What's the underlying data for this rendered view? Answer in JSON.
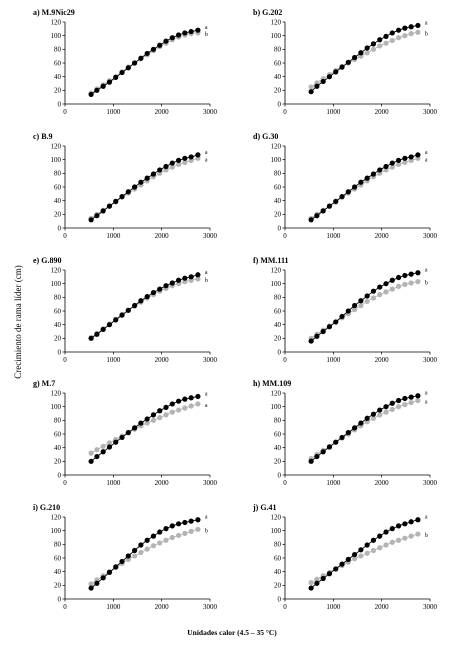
{
  "figure": {
    "ylabel": "Crecimiento de rama líder (cm)",
    "xlabel": "Unidades calor (4.5 – 35 °C)",
    "colors": {
      "series1": "#000000",
      "series2": "#b4b4b4",
      "axis": "#000000"
    }
  },
  "chart_data": [
    {
      "type": "line",
      "title": "a) M.9Nic29",
      "x": [
        540,
        660,
        790,
        920,
        1050,
        1180,
        1310,
        1440,
        1570,
        1700,
        1830,
        1960,
        2090,
        2220,
        2350,
        2480,
        2610,
        2750
      ],
      "series": [
        {
          "values": [
            14,
            20,
            26,
            32,
            39,
            46,
            53,
            60,
            67,
            74,
            80,
            86,
            92,
            97,
            101,
            104,
            106,
            108
          ],
          "marker_label": "a"
        },
        {
          "values": [
            16,
            22,
            28,
            34,
            40,
            47,
            54,
            60,
            66,
            72,
            78,
            84,
            89,
            94,
            98,
            101,
            103,
            104
          ],
          "marker_label": "b"
        }
      ],
      "xlim": [
        0,
        3000
      ],
      "ylim": [
        0,
        120
      ],
      "xticks": [
        0,
        1000,
        2000,
        3000
      ],
      "yticks": [
        0,
        20,
        40,
        60,
        80,
        100,
        120
      ]
    },
    {
      "type": "line",
      "title": "b) G.202",
      "x": [
        540,
        660,
        790,
        920,
        1050,
        1180,
        1310,
        1440,
        1570,
        1700,
        1830,
        1960,
        2090,
        2220,
        2350,
        2480,
        2610,
        2750
      ],
      "series": [
        {
          "values": [
            18,
            26,
            33,
            40,
            47,
            54,
            61,
            68,
            75,
            82,
            88,
            94,
            99,
            104,
            108,
            111,
            113,
            115
          ],
          "marker_label": "a"
        },
        {
          "values": [
            25,
            31,
            37,
            43,
            49,
            55,
            60,
            65,
            70,
            75,
            80,
            85,
            89,
            93,
            97,
            100,
            103,
            105
          ],
          "marker_label": "b"
        }
      ],
      "xlim": [
        0,
        3000
      ],
      "ylim": [
        0,
        120
      ],
      "xticks": [
        0,
        1000,
        2000,
        3000
      ],
      "yticks": [
        0,
        20,
        40,
        60,
        80,
        100,
        120
      ]
    },
    {
      "type": "line",
      "title": "c) B.9",
      "x": [
        540,
        660,
        790,
        920,
        1050,
        1180,
        1310,
        1440,
        1570,
        1700,
        1830,
        1960,
        2090,
        2220,
        2350,
        2480,
        2610,
        2750
      ],
      "series": [
        {
          "values": [
            12,
            18,
            25,
            32,
            39,
            46,
            53,
            60,
            67,
            73,
            79,
            85,
            90,
            95,
            99,
            102,
            104,
            107
          ],
          "marker_label": "a"
        },
        {
          "values": [
            14,
            20,
            26,
            32,
            38,
            45,
            51,
            57,
            63,
            69,
            75,
            80,
            85,
            89,
            93,
            96,
            99,
            102
          ],
          "marker_label": "a"
        }
      ],
      "xlim": [
        0,
        3000
      ],
      "ylim": [
        0,
        120
      ],
      "xticks": [
        0,
        1000,
        2000,
        3000
      ],
      "yticks": [
        0,
        20,
        40,
        60,
        80,
        100,
        120
      ]
    },
    {
      "type": "line",
      "title": "d) G.30",
      "x": [
        540,
        660,
        790,
        920,
        1050,
        1180,
        1310,
        1440,
        1570,
        1700,
        1830,
        1960,
        2090,
        2220,
        2350,
        2480,
        2610,
        2750
      ],
      "series": [
        {
          "values": [
            12,
            18,
            25,
            32,
            39,
            46,
            53,
            60,
            67,
            73,
            79,
            85,
            90,
            95,
            99,
            102,
            104,
            107
          ],
          "marker_label": "a"
        },
        {
          "values": [
            14,
            20,
            26,
            32,
            38,
            45,
            51,
            57,
            63,
            69,
            75,
            80,
            85,
            89,
            93,
            96,
            99,
            102
          ],
          "marker_label": "a"
        }
      ],
      "xlim": [
        0,
        3000
      ],
      "ylim": [
        0,
        120
      ],
      "xticks": [
        0,
        1000,
        2000,
        3000
      ],
      "yticks": [
        0,
        20,
        40,
        60,
        80,
        100,
        120
      ]
    },
    {
      "type": "line",
      "title": "e) G.890",
      "x": [
        540,
        660,
        790,
        920,
        1050,
        1180,
        1310,
        1440,
        1570,
        1700,
        1830,
        1960,
        2090,
        2220,
        2350,
        2480,
        2610,
        2750
      ],
      "series": [
        {
          "values": [
            20,
            26,
            33,
            40,
            47,
            54,
            61,
            68,
            75,
            81,
            87,
            92,
            97,
            101,
            105,
            108,
            110,
            113
          ],
          "marker_label": "a"
        },
        {
          "values": [
            21,
            27,
            34,
            41,
            48,
            55,
            61,
            67,
            73,
            79,
            84,
            89,
            93,
            97,
            100,
            103,
            105,
            107
          ],
          "marker_label": "b"
        }
      ],
      "xlim": [
        0,
        3000
      ],
      "ylim": [
        0,
        120
      ],
      "xticks": [
        0,
        1000,
        2000,
        3000
      ],
      "yticks": [
        0,
        20,
        40,
        60,
        80,
        100,
        120
      ]
    },
    {
      "type": "line",
      "title": "f) MM.111",
      "x": [
        540,
        660,
        790,
        920,
        1050,
        1180,
        1310,
        1440,
        1570,
        1700,
        1830,
        1960,
        2090,
        2220,
        2350,
        2480,
        2610,
        2750
      ],
      "series": [
        {
          "values": [
            16,
            23,
            30,
            37,
            44,
            52,
            60,
            68,
            75,
            82,
            89,
            95,
            100,
            105,
            109,
            112,
            114,
            116
          ],
          "marker_label": "a"
        },
        {
          "values": [
            20,
            26,
            32,
            38,
            44,
            50,
            56,
            62,
            68,
            74,
            79,
            84,
            88,
            92,
            96,
            99,
            101,
            103
          ],
          "marker_label": "b"
        }
      ],
      "xlim": [
        0,
        3000
      ],
      "ylim": [
        0,
        120
      ],
      "xticks": [
        0,
        1000,
        2000,
        3000
      ],
      "yticks": [
        0,
        20,
        40,
        60,
        80,
        100,
        120
      ]
    },
    {
      "type": "line",
      "title": "g) M.7",
      "x": [
        540,
        660,
        790,
        920,
        1050,
        1180,
        1310,
        1440,
        1570,
        1700,
        1830,
        1960,
        2090,
        2220,
        2350,
        2480,
        2610,
        2750
      ],
      "series": [
        {
          "values": [
            20,
            27,
            34,
            41,
            48,
            55,
            62,
            69,
            76,
            82,
            88,
            94,
            99,
            104,
            108,
            111,
            113,
            115
          ],
          "marker_label": "a"
        },
        {
          "values": [
            32,
            37,
            42,
            47,
            52,
            57,
            62,
            67,
            72,
            76,
            80,
            84,
            88,
            92,
            95,
            98,
            101,
            104
          ],
          "marker_label": "a"
        }
      ],
      "xlim": [
        0,
        3000
      ],
      "ylim": [
        0,
        120
      ],
      "xticks": [
        0,
        1000,
        2000,
        3000
      ],
      "yticks": [
        0,
        20,
        40,
        60,
        80,
        100,
        120
      ]
    },
    {
      "type": "line",
      "title": "h) MM.109",
      "x": [
        540,
        660,
        790,
        920,
        1050,
        1180,
        1310,
        1440,
        1570,
        1700,
        1830,
        1960,
        2090,
        2220,
        2350,
        2480,
        2610,
        2750
      ],
      "series": [
        {
          "values": [
            20,
            27,
            34,
            41,
            48,
            55,
            62,
            69,
            76,
            83,
            89,
            95,
            100,
            105,
            109,
            112,
            114,
            116
          ],
          "marker_label": "a"
        },
        {
          "values": [
            24,
            30,
            36,
            42,
            48,
            54,
            60,
            66,
            72,
            78,
            83,
            88,
            92,
            96,
            100,
            103,
            106,
            109
          ],
          "marker_label": "a"
        }
      ],
      "xlim": [
        0,
        3000
      ],
      "ylim": [
        0,
        120
      ],
      "xticks": [
        0,
        1000,
        2000,
        3000
      ],
      "yticks": [
        0,
        20,
        40,
        60,
        80,
        100,
        120
      ]
    },
    {
      "type": "line",
      "title": "i) G.210",
      "x": [
        540,
        660,
        790,
        920,
        1050,
        1180,
        1310,
        1440,
        1570,
        1700,
        1830,
        1960,
        2090,
        2220,
        2350,
        2480,
        2610,
        2750
      ],
      "series": [
        {
          "values": [
            16,
            23,
            31,
            39,
            47,
            55,
            63,
            71,
            79,
            86,
            92,
            98,
            103,
            107,
            110,
            112,
            114,
            116
          ],
          "marker_label": "a"
        },
        {
          "values": [
            22,
            28,
            34,
            40,
            46,
            52,
            58,
            63,
            68,
            73,
            78,
            82,
            86,
            90,
            93,
            96,
            99,
            102
          ],
          "marker_label": "b"
        }
      ],
      "xlim": [
        0,
        3000
      ],
      "ylim": [
        0,
        120
      ],
      "xticks": [
        0,
        1000,
        2000,
        3000
      ],
      "yticks": [
        0,
        20,
        40,
        60,
        80,
        100,
        120
      ]
    },
    {
      "type": "line",
      "title": "j) G.41",
      "x": [
        540,
        660,
        790,
        920,
        1050,
        1180,
        1310,
        1440,
        1570,
        1700,
        1830,
        1960,
        2090,
        2220,
        2350,
        2480,
        2610,
        2750
      ],
      "series": [
        {
          "values": [
            16,
            23,
            30,
            37,
            44,
            51,
            58,
            65,
            72,
            79,
            86,
            92,
            98,
            103,
            107,
            110,
            113,
            116
          ],
          "marker_label": "a"
        },
        {
          "values": [
            24,
            29,
            34,
            39,
            44,
            49,
            54,
            59,
            63,
            67,
            71,
            75,
            79,
            83,
            86,
            89,
            92,
            95
          ],
          "marker_label": "b"
        }
      ],
      "xlim": [
        0,
        3000
      ],
      "ylim": [
        0,
        120
      ],
      "xticks": [
        0,
        1000,
        2000,
        3000
      ],
      "yticks": [
        0,
        20,
        40,
        60,
        80,
        100,
        120
      ]
    }
  ]
}
